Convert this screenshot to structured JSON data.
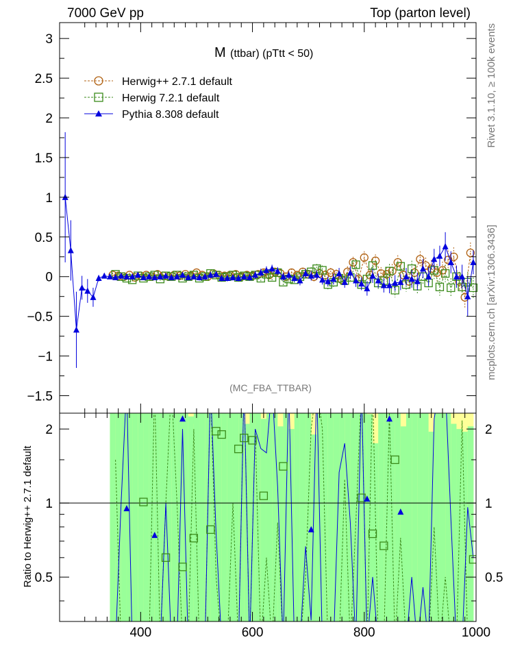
{
  "header": {
    "left": "7000 GeV pp",
    "right": "Top (parton level)"
  },
  "side_labels": {
    "rivet": "Rivet 3.1.10, ≥ 100k events",
    "mcplots": "mcplots.cern.ch [arXiv:1306.3436]"
  },
  "colors": {
    "herwigpp": "#b06010",
    "herwig7": "#3a8a1a",
    "pythia": "#0000dd",
    "band_yellow": "#ffff99",
    "band_green": "#99ff99"
  },
  "chart_data": [
    {
      "type": "line",
      "panel": "main",
      "title": "M (ttbar) (pTtt < 50)",
      "title_main": "M",
      "title_sub": "(ttbar) (pTtt < 50)",
      "watermark": "(MC_FBA_TTBAR)",
      "xlim": [
        255,
        1000
      ],
      "ylim": [
        -1.72,
        3.2
      ],
      "yticks": [
        -1.5,
        -1,
        -0.5,
        0,
        0.5,
        1,
        1.5,
        2,
        2.5,
        3
      ],
      "ytick_labels": [
        "−1.5",
        "−1",
        "−0.5",
        "0",
        "0.5",
        "1",
        "1.5",
        "2",
        "2.5",
        "3"
      ],
      "legend_position": "top-left",
      "series": [
        {
          "name": "Herwig++ 2.7.1 default",
          "marker": "open-circle",
          "x": [
            350,
            360,
            370,
            380,
            390,
            400,
            410,
            420,
            430,
            440,
            450,
            460,
            470,
            480,
            490,
            500,
            510,
            520,
            530,
            540,
            550,
            560,
            570,
            580,
            590,
            600,
            610,
            620,
            630,
            640,
            650,
            660,
            670,
            680,
            690,
            700,
            710,
            720,
            730,
            740,
            750,
            760,
            770,
            780,
            790,
            800,
            810,
            820,
            830,
            840,
            850,
            860,
            870,
            880,
            890,
            900,
            910,
            920,
            930,
            940,
            950,
            960,
            970,
            980,
            990
          ],
          "y": [
            0.02,
            0.01,
            0.0,
            0.02,
            -0.01,
            0.01,
            0.02,
            0.0,
            0.03,
            0.01,
            0.0,
            0.02,
            0.01,
            0.03,
            0.01,
            0.05,
            0.02,
            0.0,
            0.04,
            0.02,
            0.01,
            0.02,
            0.03,
            0.0,
            0.02,
            0.01,
            0.03,
            0.05,
            0.02,
            0.06,
            0.04,
            0.0,
            0.05,
            0.02,
            0.06,
            0.03,
            0.0,
            0.04,
            0.02,
            0.05,
            0.03,
            -0.04,
            0.06,
            0.18,
            -0.03,
            0.24,
            0.02,
            0.2,
            0.04,
            0.03,
            0.07,
            0.18,
            0.02,
            -0.06,
            0.05,
            0.22,
            0.14,
            0.1,
            0.05,
            0.08,
            0.21,
            0.25,
            -0.06,
            -0.26,
            0.3
          ],
          "err": [
            0.03,
            0.03,
            0.03,
            0.03,
            0.03,
            0.03,
            0.03,
            0.03,
            0.03,
            0.03,
            0.03,
            0.03,
            0.03,
            0.03,
            0.03,
            0.03,
            0.04,
            0.04,
            0.04,
            0.04,
            0.04,
            0.04,
            0.04,
            0.04,
            0.04,
            0.04,
            0.04,
            0.05,
            0.05,
            0.05,
            0.05,
            0.05,
            0.05,
            0.05,
            0.05,
            0.05,
            0.06,
            0.06,
            0.06,
            0.06,
            0.06,
            0.06,
            0.07,
            0.07,
            0.07,
            0.08,
            0.08,
            0.08,
            0.08,
            0.09,
            0.09,
            0.09,
            0.09,
            0.1,
            0.1,
            0.1,
            0.1,
            0.11,
            0.11,
            0.11,
            0.12,
            0.12,
            0.12,
            0.13,
            0.13
          ]
        },
        {
          "name": "Herwig 7.2.1 default",
          "marker": "open-square",
          "x": [
            355,
            365,
            375,
            385,
            395,
            405,
            415,
            425,
            435,
            445,
            455,
            465,
            475,
            485,
            495,
            505,
            515,
            525,
            535,
            545,
            555,
            565,
            575,
            585,
            595,
            605,
            615,
            625,
            635,
            645,
            655,
            665,
            675,
            685,
            695,
            705,
            715,
            725,
            735,
            745,
            755,
            765,
            775,
            785,
            795,
            805,
            815,
            825,
            835,
            845,
            855,
            865,
            875,
            885,
            895,
            905,
            915,
            925,
            935,
            945,
            955,
            965,
            975,
            985,
            995
          ],
          "y": [
            0.03,
            0.0,
            -0.02,
            -0.04,
            0.01,
            -0.02,
            0.0,
            0.02,
            -0.03,
            0.01,
            0.0,
            0.02,
            -0.02,
            0.0,
            0.02,
            -0.02,
            0.0,
            0.04,
            0.02,
            -0.01,
            0.0,
            0.02,
            -0.01,
            0.01,
            0.0,
            0.02,
            -0.02,
            0.03,
            -0.01,
            0.05,
            -0.07,
            -0.03,
            -0.04,
            0.0,
            0.03,
            0.06,
            0.1,
            0.08,
            -0.1,
            -0.07,
            -0.02,
            -0.05,
            -0.01,
            0.15,
            -0.1,
            -0.03,
            0.14,
            -0.08,
            -0.05,
            0.07,
            -0.17,
            0.13,
            -0.1,
            0.1,
            -0.12,
            0.0,
            -0.08,
            0.08,
            -0.13,
            0.04,
            -0.14,
            0.0,
            -0.13,
            -0.07,
            -0.14
          ],
          "err": [
            0.03,
            0.03,
            0.03,
            0.03,
            0.03,
            0.03,
            0.03,
            0.03,
            0.03,
            0.03,
            0.03,
            0.03,
            0.03,
            0.03,
            0.03,
            0.03,
            0.04,
            0.04,
            0.04,
            0.04,
            0.04,
            0.04,
            0.04,
            0.04,
            0.04,
            0.04,
            0.05,
            0.05,
            0.05,
            0.05,
            0.05,
            0.05,
            0.05,
            0.05,
            0.05,
            0.06,
            0.06,
            0.06,
            0.06,
            0.06,
            0.06,
            0.07,
            0.07,
            0.07,
            0.07,
            0.08,
            0.08,
            0.08,
            0.08,
            0.09,
            0.09,
            0.09,
            0.09,
            0.1,
            0.1,
            0.1,
            0.1,
            0.11,
            0.11,
            0.11,
            0.12,
            0.12,
            0.12,
            0.13,
            0.13
          ]
        },
        {
          "name": "Pythia 8.308 default",
          "marker": "filled-triangle",
          "x": [
            265,
            275,
            285,
            295,
            305,
            315,
            325,
            335,
            345,
            355,
            365,
            375,
            385,
            395,
            405,
            415,
            425,
            435,
            445,
            455,
            465,
            475,
            485,
            495,
            505,
            515,
            525,
            535,
            545,
            555,
            565,
            575,
            585,
            595,
            605,
            615,
            625,
            635,
            645,
            655,
            665,
            675,
            685,
            695,
            705,
            715,
            725,
            735,
            745,
            755,
            765,
            775,
            785,
            795,
            805,
            815,
            825,
            835,
            845,
            855,
            865,
            875,
            885,
            895,
            905,
            915,
            925,
            935,
            945,
            955,
            965,
            975,
            985,
            995
          ],
          "y": [
            1.0,
            0.33,
            -0.67,
            -0.14,
            -0.18,
            -0.26,
            -0.02,
            0.01,
            0.0,
            -0.01,
            0.01,
            0.0,
            0.0,
            0.02,
            -0.01,
            0.0,
            -0.01,
            0.0,
            0.01,
            -0.01,
            0.0,
            0.02,
            -0.01,
            0.0,
            -0.01,
            0.0,
            0.02,
            0.03,
            -0.02,
            -0.02,
            -0.01,
            -0.02,
            0.0,
            -0.01,
            0.02,
            0.05,
            0.08,
            0.1,
            0.07,
            0.0,
            0.02,
            -0.02,
            -0.05,
            0.04,
            0.01,
            0.02,
            -0.04,
            -0.06,
            -0.03,
            0.04,
            -0.07,
            0.05,
            -0.05,
            -0.09,
            -0.15,
            0.01,
            -0.05,
            -0.11,
            -0.11,
            -0.08,
            -0.07,
            0.0,
            -0.03,
            -0.06,
            0.1,
            0.0,
            0.22,
            0.26,
            0.38,
            0.18,
            0.0,
            0.0,
            -0.25,
            0.18
          ],
          "err": [
            0.82,
            0.38,
            0.48,
            0.15,
            0.15,
            0.12,
            0.04,
            0.03,
            0.03,
            0.03,
            0.03,
            0.03,
            0.03,
            0.03,
            0.03,
            0.03,
            0.03,
            0.03,
            0.03,
            0.03,
            0.03,
            0.03,
            0.03,
            0.03,
            0.04,
            0.04,
            0.04,
            0.04,
            0.04,
            0.04,
            0.04,
            0.04,
            0.04,
            0.04,
            0.05,
            0.05,
            0.05,
            0.05,
            0.05,
            0.05,
            0.05,
            0.05,
            0.06,
            0.06,
            0.06,
            0.06,
            0.06,
            0.06,
            0.07,
            0.07,
            0.07,
            0.08,
            0.08,
            0.08,
            0.09,
            0.09,
            0.09,
            0.09,
            0.1,
            0.1,
            0.1,
            0.11,
            0.11,
            0.11,
            0.12,
            0.12,
            0.13,
            0.13,
            0.18,
            0.14,
            0.14,
            0.15,
            0.25,
            0.15
          ]
        }
      ]
    },
    {
      "type": "scatter",
      "panel": "ratio",
      "ylabel": "Ratio to Herwig++ 2.7.1 default",
      "xlim": [
        255,
        1000
      ],
      "ylim": [
        0.33,
        2.32
      ],
      "xticks": [
        400,
        600,
        800,
        1000
      ],
      "xtick_labels": [
        "400",
        "600",
        "800",
        "1000"
      ],
      "yticks": [
        0.5,
        1,
        2
      ],
      "ytick_labels": [
        "0.5",
        "1",
        "2"
      ],
      "reference_line": 1,
      "bands": {
        "x_start": 345,
        "x_end": 995,
        "yellow_top": [
          2.32,
          2.32,
          2.2,
          2.32,
          2.32,
          2.32,
          2.32,
          2.32,
          2.2,
          2.32,
          2.32,
          2.25,
          2.32,
          2.32,
          2.32,
          2.1,
          2.32,
          2.32,
          2.32,
          2.32,
          2.32,
          2.32,
          2.32,
          2.32,
          2.32,
          2.32,
          2.32,
          2.32,
          2.32,
          2.32,
          2.32,
          2.32,
          2.32,
          2.32,
          2.32,
          2.32,
          2.32,
          2.32,
          2.32,
          2.32,
          2.32,
          2.32,
          2.32,
          2.32,
          2.32,
          2.32,
          2.32,
          2.32,
          2.32,
          2.32,
          2.32,
          2.32,
          2.32,
          2.32,
          2.32,
          2.32,
          2.32,
          2.32,
          2.32,
          2.32,
          2.32,
          2.32,
          2.32,
          2.32,
          2.32
        ],
        "green_top": [
          2.32,
          2.32,
          2.32,
          2.32,
          2.32,
          2.32,
          2.32,
          2.32,
          2.32,
          2.32,
          2.32,
          2.32,
          2.32,
          2.32,
          2.25,
          2.32,
          2.32,
          2.32,
          2.32,
          2.32,
          2.32,
          2.32,
          2.32,
          2.32,
          2.1,
          2.32,
          2.32,
          2.2,
          2.32,
          2.32,
          2.05,
          2.32,
          2.0,
          2.32,
          2.32,
          2.32,
          1.9,
          2.32,
          2.32,
          2.32,
          2.32,
          2.32,
          2.32,
          2.32,
          2.32,
          2.32,
          2.3,
          1.75,
          2.32,
          2.32,
          2.32,
          2.32,
          2.05,
          2.32,
          2.32,
          2.32,
          2.32,
          1.95,
          2.32,
          2.32,
          2.32,
          2.1,
          2.0,
          1.95,
          2.05
        ],
        "green_bottom": [
          0.33,
          0.33,
          0.33,
          0.33,
          0.33,
          0.33,
          0.33,
          0.33,
          0.33,
          0.33,
          0.33,
          0.33,
          0.33,
          0.33,
          0.33,
          0.33,
          0.33,
          0.33,
          0.33,
          0.33,
          0.33,
          0.33,
          0.33,
          0.33,
          0.33,
          0.33,
          0.33,
          0.33,
          0.33,
          0.33,
          0.33,
          0.33,
          0.33,
          0.33,
          0.33,
          0.33,
          0.33,
          0.33,
          0.33,
          0.33,
          0.33,
          0.33,
          0.33,
          0.33,
          0.33,
          0.33,
          0.33,
          0.33,
          0.33,
          0.33,
          0.33,
          0.33,
          0.33,
          0.33,
          0.33,
          0.33,
          0.33,
          0.33,
          0.33,
          0.33,
          0.33,
          0.33,
          0.33,
          0.33,
          0.33
        ]
      },
      "series": [
        {
          "name": "Herwig 7.2.1 default",
          "x": [
            405,
            445,
            475,
            495,
            525,
            535,
            545,
            575,
            585,
            600,
            620,
            655,
            795,
            815,
            835,
            855,
            995
          ],
          "y": [
            1.01,
            0.6,
            0.55,
            0.72,
            0.78,
            1.96,
            1.9,
            1.66,
            1.84,
            1.8,
            1.07,
            1.41,
            1.05,
            0.75,
            0.67,
            1.5,
            0.59
          ]
        },
        {
          "name": "Pythia 8.308 default",
          "x": [
            375,
            425,
            475,
            705,
            805,
            845,
            865
          ],
          "y": [
            0.95,
            0.74,
            2.2,
            0.78,
            1.04,
            2.2,
            0.92
          ]
        }
      ]
    }
  ]
}
